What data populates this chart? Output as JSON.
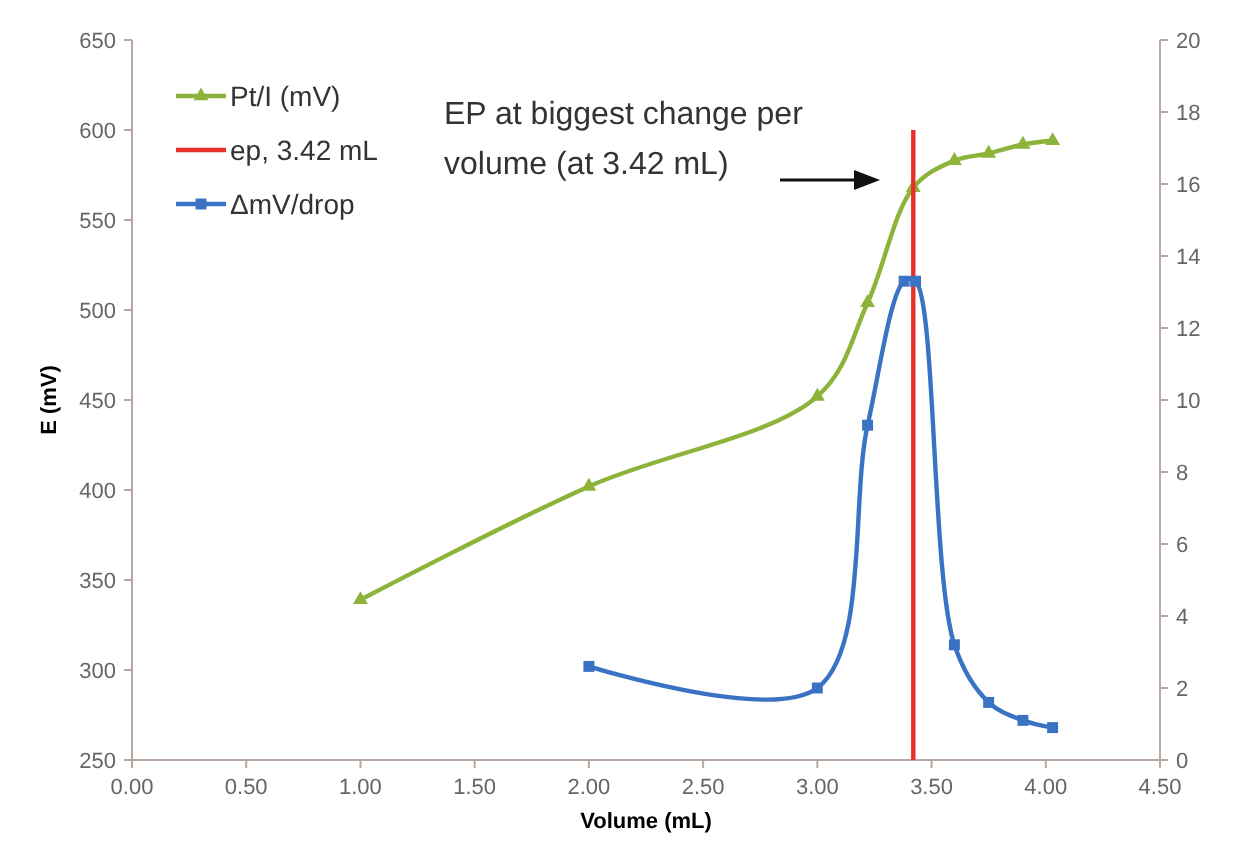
{
  "chart_data": {
    "type": "line",
    "xlabel": "Volume (mL)",
    "ylabel": "E (mV)",
    "xlim": [
      0,
      4.5
    ],
    "xticks": [
      {
        "value": 0,
        "label": "0.00"
      },
      {
        "value": 0.5,
        "label": "0.50"
      },
      {
        "value": 1,
        "label": "1.00"
      },
      {
        "value": 1.5,
        "label": "1.50"
      },
      {
        "value": 2,
        "label": "2.00"
      },
      {
        "value": 2.5,
        "label": "2.50"
      },
      {
        "value": 3,
        "label": "3.00"
      },
      {
        "value": 3.5,
        "label": "3.50"
      },
      {
        "value": 4,
        "label": "4.00"
      },
      {
        "value": 4.5,
        "label": "4.50"
      }
    ],
    "ylim": [
      250,
      650
    ],
    "yticks": [
      250,
      300,
      350,
      400,
      450,
      500,
      550,
      600,
      650
    ],
    "y2lim": [
      0,
      20
    ],
    "y2ticks": [
      0,
      2,
      4,
      6,
      8,
      10,
      12,
      14,
      16,
      18,
      20
    ],
    "series": [
      {
        "name": "Pt/I (mV)",
        "color": "#8db33a",
        "marker": "triangle",
        "x": [
          1,
          2,
          3,
          3.22,
          3.42,
          3.6,
          3.75,
          3.9,
          4.03
        ],
        "values": [
          339,
          402,
          452,
          504,
          568,
          583,
          587,
          592,
          594
        ]
      },
      {
        "name": "ep, 3.42 mL",
        "color": "#e8302a",
        "marker": "none",
        "x": [
          3.42,
          3.42
        ],
        "values": [
          250,
          600
        ]
      },
      {
        "name": "ΔmV/drop",
        "color": "#3a73c4",
        "marker": "square",
        "axis": "y2",
        "x": [
          2,
          3,
          3.22,
          3.38,
          3.43,
          3.6,
          3.75,
          3.9,
          4.03
        ],
        "values": [
          2.6,
          2.0,
          9.3,
          13.3,
          13.3,
          3.2,
          1.6,
          1.1,
          0.9
        ]
      }
    ],
    "annotations": [
      "EP at biggest change per volume (at 3.42 mL)"
    ],
    "legend": "top left",
    "grid": false
  }
}
